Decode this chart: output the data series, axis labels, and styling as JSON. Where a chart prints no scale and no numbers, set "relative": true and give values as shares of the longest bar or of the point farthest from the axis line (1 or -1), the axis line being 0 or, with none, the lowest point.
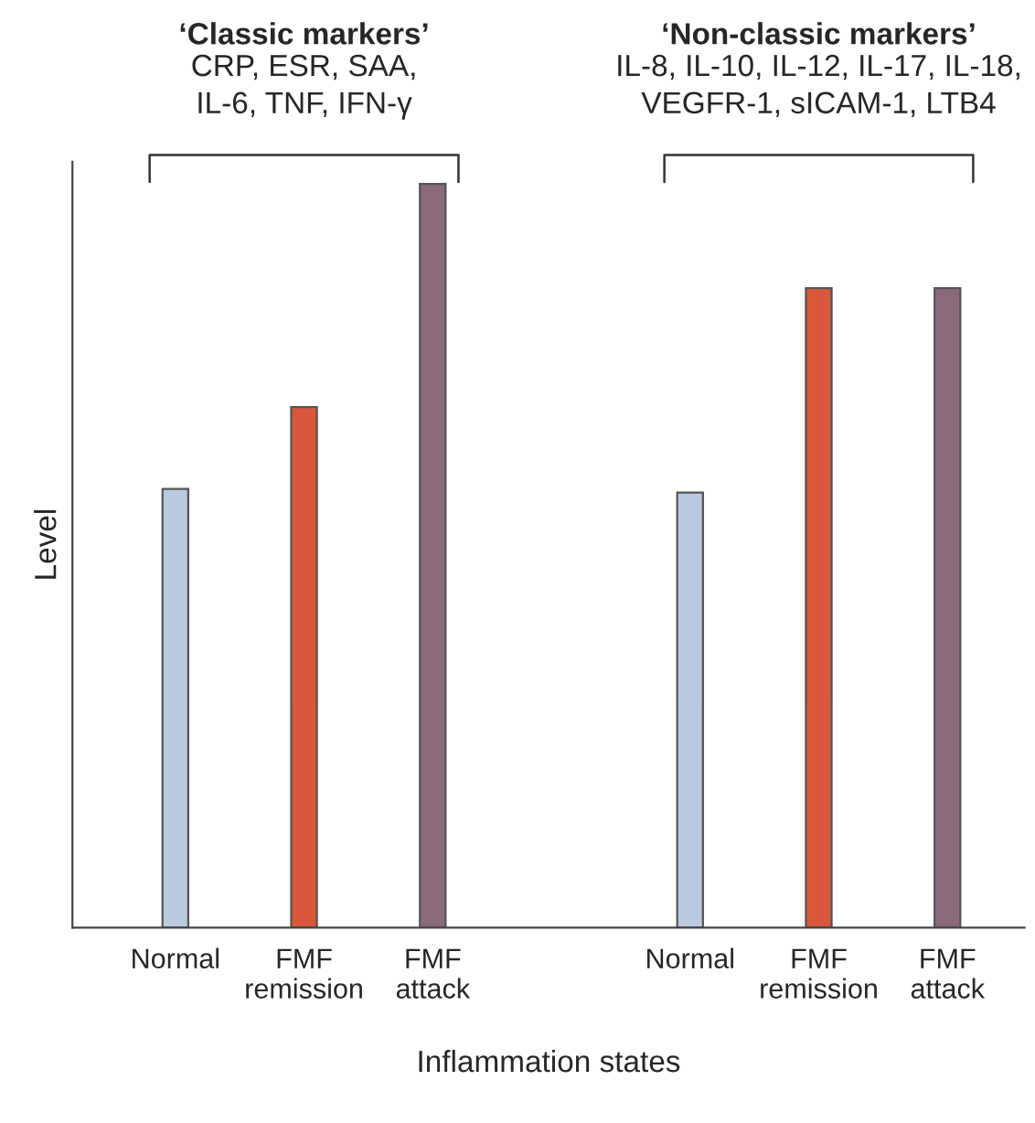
{
  "chart_data": {
    "type": "bar",
    "relative": true,
    "categories": [
      "Normal",
      "FMF\nremission",
      "FMF\nattack",
      null,
      "Normal",
      "FMF\nremission",
      "FMF\nattack"
    ],
    "values": [
      0.59,
      0.7,
      1,
      null,
      0.585,
      0.86,
      0.86
    ],
    "colors": [
      "#b9c9e2",
      "#d9583c",
      "#8c6a7c",
      "#ffffff",
      "#b9c9e2",
      "#d9583c",
      "#8c6a7c"
    ],
    "xlabel": "Inflammation states",
    "ylabel": "Level",
    "annotations": [
      "‘Classic markers’",
      "CRP, ESR, SAA,\nIL-6, TNF, IFN-γ",
      "‘Non-classic markers’",
      "IL-8, IL-10, IL-12, IL-17, IL-18,\nVEGFR-1, sICAM-1, LTB4"
    ],
    "grid": false,
    "legend": false
  }
}
